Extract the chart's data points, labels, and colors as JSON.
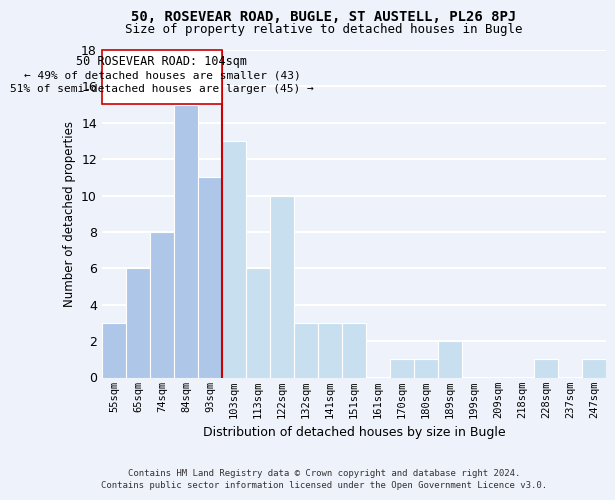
{
  "title": "50, ROSEVEAR ROAD, BUGLE, ST AUSTELL, PL26 8PJ",
  "subtitle": "Size of property relative to detached houses in Bugle",
  "xlabel": "Distribution of detached houses by size in Bugle",
  "ylabel": "Number of detached properties",
  "bin_labels": [
    "55sqm",
    "65sqm",
    "74sqm",
    "84sqm",
    "93sqm",
    "103sqm",
    "113sqm",
    "122sqm",
    "132sqm",
    "141sqm",
    "151sqm",
    "161sqm",
    "170sqm",
    "180sqm",
    "189sqm",
    "199sqm",
    "209sqm",
    "218sqm",
    "228sqm",
    "237sqm",
    "247sqm"
  ],
  "bar_heights": [
    3,
    6,
    8,
    15,
    11,
    13,
    6,
    10,
    3,
    3,
    3,
    0,
    1,
    1,
    2,
    0,
    0,
    0,
    1,
    0,
    1
  ],
  "bar_color_left": "#aec6e8",
  "bar_color_right": "#c8dff0",
  "vline_color": "#cc0000",
  "annotation_line1": "50 ROSEVEAR ROAD: 104sqm",
  "annotation_line2": "← 49% of detached houses are smaller (43)",
  "annotation_line3": "51% of semi-detached houses are larger (45) →",
  "footer_line1": "Contains HM Land Registry data © Crown copyright and database right 2024.",
  "footer_line2": "Contains public sector information licensed under the Open Government Licence v3.0.",
  "ylim": [
    0,
    18
  ],
  "yticks": [
    0,
    2,
    4,
    6,
    8,
    10,
    12,
    14,
    16,
    18
  ],
  "bg_color": "#eef2fb",
  "grid_color": "#ffffff",
  "title_fontsize": 10,
  "subtitle_fontsize": 9,
  "vline_bar_index": 5
}
